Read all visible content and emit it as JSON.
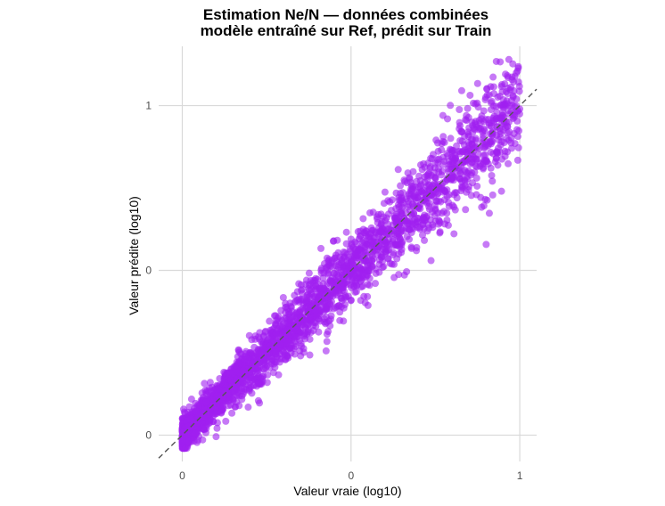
{
  "chart_data": {
    "type": "scatter",
    "title_line1": "Estimation Ne/N — données combinées",
    "title_line2": "modèle entraîné sur Ref, prédit sur Train",
    "xlabel": "Valeur vraie (log10)",
    "ylabel": "Valeur prédite (log10)",
    "x_ticks": [
      {
        "label": "0",
        "value": 0.0
      },
      {
        "label": "0",
        "value": 0.5
      },
      {
        "label": "1",
        "value": 1.0
      }
    ],
    "y_ticks": [
      {
        "label": "0",
        "value": 0.0
      },
      {
        "label": "0",
        "value": 0.5
      },
      {
        "label": "1",
        "value": 1.0
      }
    ],
    "xlim": [
      -0.07,
      1.05
    ],
    "ylim": [
      -0.08,
      1.18
    ],
    "grid": true,
    "reference_line": "y = x (dashed)",
    "point_color": "#a020f0",
    "point_alpha": 0.6,
    "series": [
      {
        "values_note": "",
        "points": [
          [
            0.0,
            0.02
          ],
          [
            0.01,
            0.05
          ],
          [
            0.02,
            0.01
          ],
          [
            0.03,
            0.06
          ],
          [
            0.04,
            0.03
          ],
          [
            0.05,
            0.08
          ],
          [
            0.06,
            0.05
          ],
          [
            0.07,
            0.1
          ],
          [
            0.08,
            0.06
          ],
          [
            0.09,
            0.12
          ],
          [
            0.1,
            0.09
          ],
          [
            0.11,
            0.14
          ],
          [
            0.12,
            0.1
          ],
          [
            0.13,
            0.16
          ],
          [
            0.14,
            0.12
          ],
          [
            0.15,
            0.18
          ],
          [
            0.16,
            0.15
          ],
          [
            0.17,
            0.2
          ],
          [
            0.18,
            0.16
          ],
          [
            0.19,
            0.22
          ],
          [
            0.2,
            0.19
          ],
          [
            0.21,
            0.24
          ],
          [
            0.22,
            0.2
          ],
          [
            0.23,
            0.26
          ],
          [
            0.24,
            0.23
          ],
          [
            0.25,
            0.28
          ],
          [
            0.26,
            0.25
          ],
          [
            0.27,
            0.3
          ],
          [
            0.28,
            0.26
          ],
          [
            0.29,
            0.31
          ],
          [
            0.3,
            0.29
          ],
          [
            0.31,
            0.34
          ],
          [
            0.32,
            0.3
          ],
          [
            0.33,
            0.36
          ],
          [
            0.34,
            0.33
          ],
          [
            0.35,
            0.38
          ],
          [
            0.36,
            0.35
          ],
          [
            0.37,
            0.4
          ],
          [
            0.38,
            0.36
          ],
          [
            0.39,
            0.42
          ],
          [
            0.4,
            0.39
          ],
          [
            0.41,
            0.44
          ],
          [
            0.42,
            0.4
          ],
          [
            0.43,
            0.46
          ],
          [
            0.44,
            0.43
          ],
          [
            0.45,
            0.47
          ],
          [
            0.46,
            0.45
          ],
          [
            0.47,
            0.5
          ],
          [
            0.48,
            0.47
          ],
          [
            0.49,
            0.52
          ],
          [
            0.5,
            0.49
          ],
          [
            0.51,
            0.54
          ],
          [
            0.52,
            0.51
          ],
          [
            0.53,
            0.56
          ],
          [
            0.54,
            0.53
          ],
          [
            0.55,
            0.58
          ],
          [
            0.56,
            0.55
          ],
          [
            0.57,
            0.6
          ],
          [
            0.58,
            0.57
          ],
          [
            0.59,
            0.62
          ],
          [
            0.6,
            0.59
          ],
          [
            0.61,
            0.64
          ],
          [
            0.62,
            0.61
          ],
          [
            0.63,
            0.66
          ],
          [
            0.64,
            0.63
          ],
          [
            0.65,
            0.68
          ],
          [
            0.66,
            0.65
          ],
          [
            0.67,
            0.7
          ],
          [
            0.68,
            0.67
          ],
          [
            0.69,
            0.72
          ],
          [
            0.7,
            0.69
          ],
          [
            0.71,
            0.74
          ],
          [
            0.72,
            0.71
          ],
          [
            0.73,
            0.76
          ],
          [
            0.74,
            0.73
          ],
          [
            0.75,
            0.78
          ],
          [
            0.76,
            0.75
          ],
          [
            0.77,
            0.8
          ],
          [
            0.78,
            0.77
          ],
          [
            0.79,
            0.82
          ],
          [
            0.8,
            0.79
          ],
          [
            0.81,
            0.84
          ],
          [
            0.82,
            0.81
          ],
          [
            0.83,
            0.86
          ],
          [
            0.84,
            0.83
          ],
          [
            0.85,
            0.88
          ],
          [
            0.86,
            0.85
          ],
          [
            0.87,
            0.9
          ],
          [
            0.88,
            0.87
          ],
          [
            0.89,
            0.92
          ],
          [
            0.9,
            0.89
          ],
          [
            0.91,
            0.94
          ],
          [
            0.92,
            0.91
          ],
          [
            0.93,
            0.96
          ],
          [
            0.94,
            0.93
          ],
          [
            0.95,
            0.98
          ],
          [
            0.96,
            0.95
          ],
          [
            0.97,
            1.0
          ],
          [
            0.98,
            0.97
          ],
          [
            0.99,
            1.02
          ],
          [
            1.0,
            0.99
          ]
        ]
      }
    ]
  }
}
